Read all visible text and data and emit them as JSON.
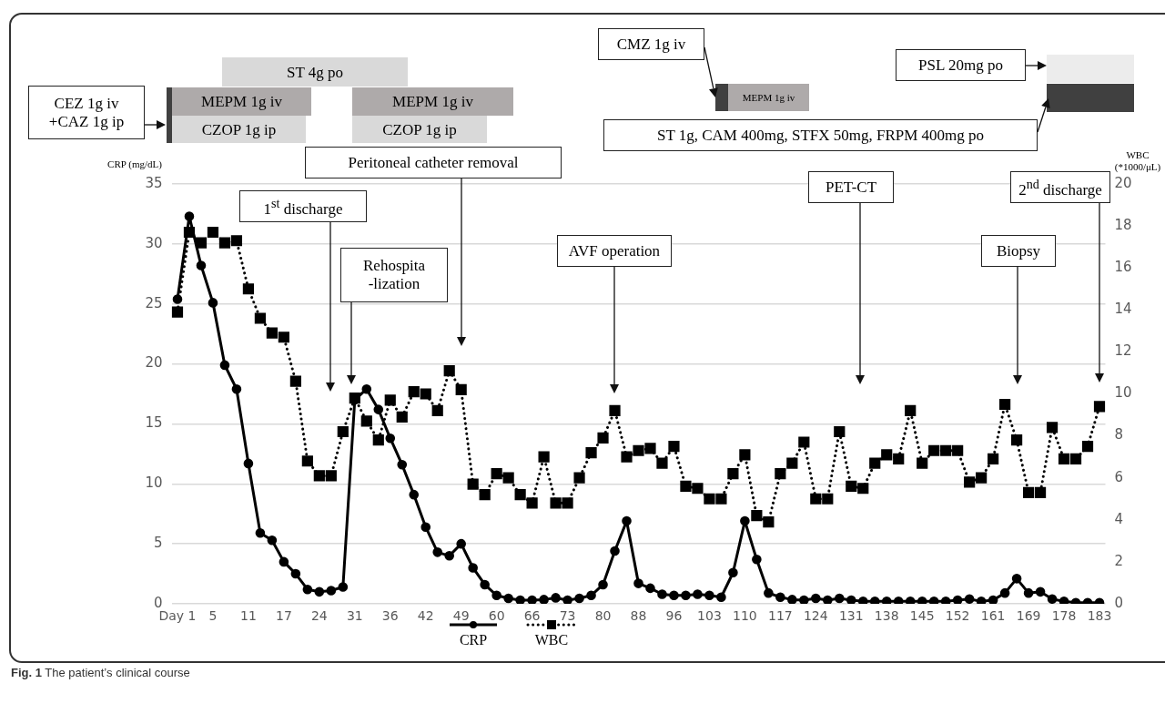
{
  "chart_data": {
    "type": "line",
    "ylabel": "CRP (mg/dL)",
    "y2label": "WBC (*1000/μL)",
    "categories": [
      "Day 1",
      null,
      null,
      "5",
      null,
      null,
      "11",
      null,
      null,
      "17",
      null,
      null,
      "24",
      null,
      null,
      "31",
      null,
      null,
      "36",
      null,
      null,
      "42",
      null,
      null,
      "49",
      null,
      null,
      "60",
      null,
      null,
      "66",
      null,
      null,
      "73",
      null,
      null,
      "80",
      null,
      null,
      "88",
      null,
      null,
      "96",
      null,
      null,
      "103",
      null,
      null,
      "110",
      null,
      null,
      "117",
      null,
      null,
      "124",
      null,
      null,
      "131",
      null,
      null,
      "138",
      null,
      null,
      "145",
      null,
      null,
      "152",
      null,
      null,
      "161",
      null,
      null,
      "169",
      null,
      null,
      "178",
      null,
      null,
      "183"
    ],
    "series": [
      {
        "name": "CRP",
        "color": "#000000",
        "marker": "circle",
        "line_style": "solid",
        "values": [
          25.4,
          32.3,
          28.2,
          25.1,
          19.9,
          17.9,
          11.7,
          5.9,
          5.3,
          3.5,
          2.5,
          1.2,
          1.0,
          1.1,
          1.4,
          17.0,
          17.9,
          16.2,
          13.8,
          11.6,
          9.1,
          6.4,
          4.3,
          4.0,
          5.0,
          3.0,
          1.6,
          0.7,
          0.45,
          0.3,
          0.3,
          0.35,
          0.5,
          0.3,
          0.45,
          0.7,
          1.6,
          4.4,
          6.9,
          1.7,
          1.3,
          0.8,
          0.7,
          0.7,
          0.8,
          0.7,
          0.55,
          2.6,
          6.9,
          3.7,
          0.9,
          0.55,
          0.35,
          0.3,
          0.45,
          0.3,
          0.45,
          0.3,
          0.2,
          0.2,
          0.2,
          0.2,
          0.2,
          0.2,
          0.2,
          0.2,
          0.3,
          0.4,
          0.2,
          0.3,
          0.9,
          2.1,
          0.9,
          1.0,
          0.4,
          0.2,
          0.1,
          0.1,
          0.1
        ]
      },
      {
        "name": "WBC",
        "color": "#000000",
        "marker": "square",
        "line_style": "dotted",
        "axis": "y2",
        "values": [
          13.9,
          17.7,
          17.2,
          17.7,
          17.2,
          17.3,
          15.0,
          13.6,
          12.9,
          12.7,
          10.6,
          6.8,
          6.1,
          6.1,
          8.2,
          9.8,
          8.7,
          7.8,
          9.7,
          8.9,
          10.1,
          10.0,
          9.2,
          11.1,
          10.2,
          5.7,
          5.2,
          6.2,
          6.0,
          5.2,
          4.8,
          7.0,
          4.8,
          4.8,
          6.0,
          7.2,
          7.9,
          9.2,
          7.0,
          7.3,
          7.4,
          6.7,
          7.5,
          5.6,
          5.5,
          5.0,
          5.0,
          6.2,
          7.1,
          4.2,
          3.9,
          6.2,
          6.7,
          7.7,
          5.0,
          5.0,
          8.2,
          5.6,
          5.5,
          6.7,
          7.1,
          6.9,
          9.2,
          6.7,
          7.3,
          7.3,
          7.3,
          5.8,
          6.0,
          6.9,
          9.5,
          7.8,
          5.3,
          5.3,
          8.4,
          6.9,
          6.9,
          7.5,
          9.4
        ]
      }
    ],
    "ylim": [
      0,
      35
    ],
    "yticks": [
      0,
      5,
      10,
      15,
      20,
      25,
      30,
      35
    ],
    "y2lim": [
      0,
      20
    ],
    "y2ticks": [
      0,
      2,
      4,
      6,
      8,
      10,
      12,
      14,
      16,
      18,
      20
    ],
    "grid": "y",
    "legend": "bottom",
    "annotations": [
      "CEZ 1g iv +CAZ 1g ip",
      "ST 4g po",
      "MEPM 1g iv",
      "CZOP 1g ip",
      "MEPM 1g iv",
      "CZOP 1g ip",
      "CMZ 1g iv",
      "MEPM 1g iv",
      "PSL 20mg po",
      "ST 1g, CAM 400mg, STFX 50mg, FRPM 400mg po",
      "Peritoneal catheter removal",
      "1$^{st}$ discharge",
      "Rehospita -lization",
      "AVF operation",
      "PET-CT",
      "Biopsy",
      "2$^{nd}$ discharge",
      "Fig. 1 The patient’s clinical course"
    ]
  }
}
